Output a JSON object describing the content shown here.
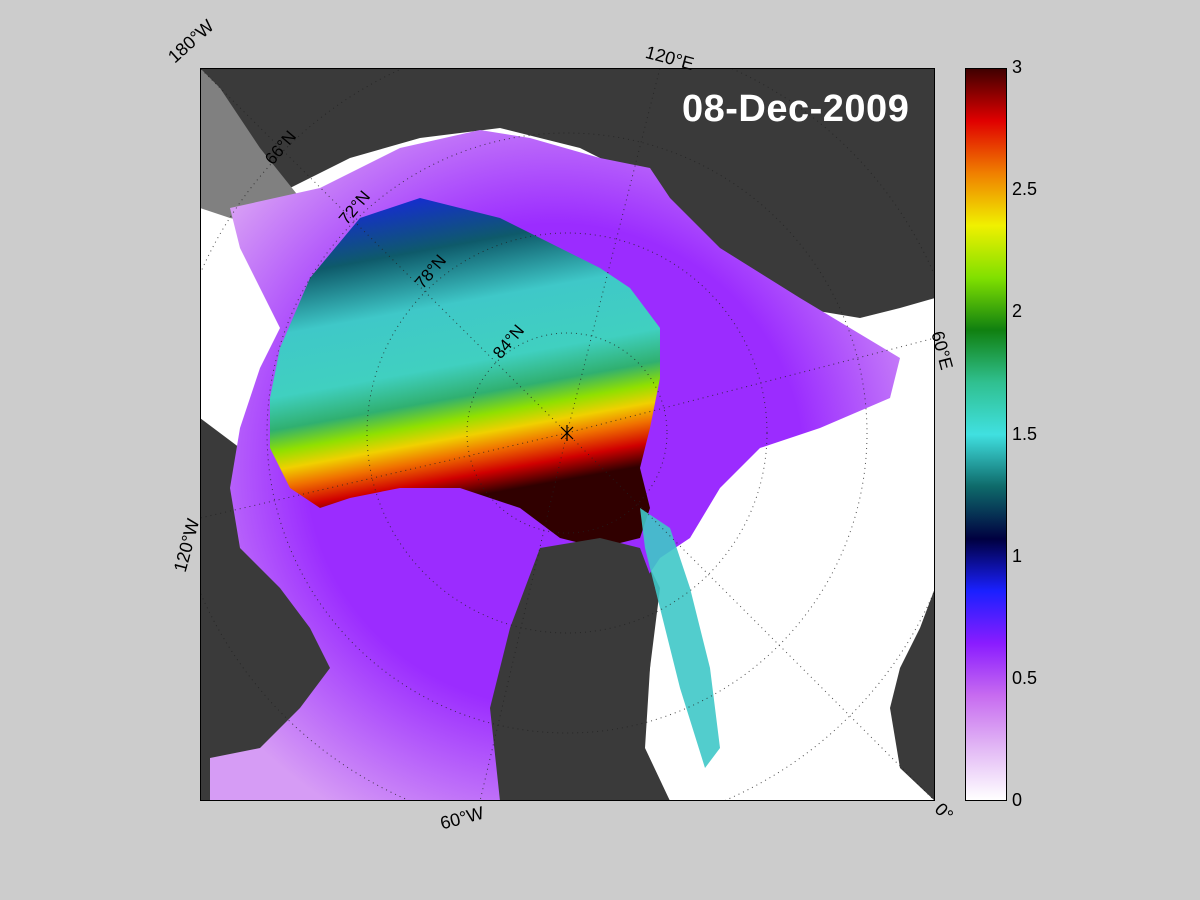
{
  "map": {
    "date": "08-Dec-2009",
    "longitude_labels": {
      "w180": "180°W",
      "e120": "120°E",
      "e60": "60°E",
      "w120": "120°W",
      "w60": "60°W",
      "zero": "0°"
    },
    "latitude_labels": {
      "n66": "66°N",
      "n72": "72°N",
      "n78": "78°N",
      "n84": "84°N"
    },
    "colors": {
      "figure_background": "#cccccc",
      "land": "#3a3a3a",
      "land_shadow": "#808080",
      "open_water": "#ffffff"
    }
  },
  "colorbar": {
    "ticks": [
      "0",
      "0.5",
      "1",
      "1.5",
      "2",
      "2.5",
      "3"
    ],
    "min": 0,
    "max": 3,
    "colormap": [
      "#ffffff",
      "#e2b8f5",
      "#c76bf0",
      "#8a1cff",
      "#1a20ff",
      "#000040",
      "#0e6a6a",
      "#40e0e0",
      "#30c090",
      "#108010",
      "#80e000",
      "#f0f000",
      "#f08000",
      "#e00000",
      "#400000"
    ]
  }
}
